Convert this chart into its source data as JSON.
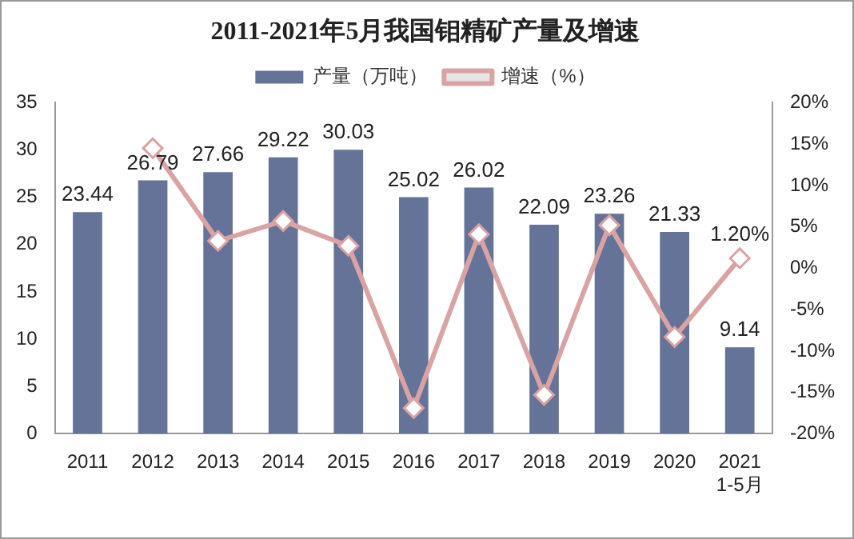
{
  "chart_data": {
    "type": "bar",
    "title": "2011-2021年5月我国钼精矿产量及增速",
    "categories": [
      "2011",
      "2012",
      "2013",
      "2014",
      "2015",
      "2016",
      "2017",
      "2018",
      "2019",
      "2020",
      "2021\n1-5月"
    ],
    "series": [
      {
        "name": "产量（万吨）",
        "color": "#667399",
        "values": [
          23.44,
          26.79,
          27.66,
          29.22,
          30.03,
          25.02,
          26.02,
          22.09,
          23.26,
          21.33,
          9.14
        ],
        "value_labels": [
          "23.44",
          "26.79",
          "27.66",
          "29.22",
          "30.03",
          "25.02",
          "26.02",
          "22.09",
          "23.26",
          "21.33",
          "9.14"
        ]
      },
      {
        "name": "增速（%）",
        "type": "line",
        "axis": "y2",
        "color": "#d9a3a3",
        "values": [
          null,
          14.5,
          3.3,
          5.7,
          2.7,
          -16.9,
          4.1,
          -15.3,
          5.2,
          -8.3,
          1.2
        ],
        "value_labels": [
          null,
          null,
          null,
          null,
          null,
          null,
          null,
          null,
          null,
          null,
          "1.20%"
        ]
      }
    ],
    "ylim": [
      0,
      35
    ],
    "yticks": [
      0,
      5,
      10,
      15,
      20,
      25,
      30,
      35
    ],
    "y2lim": [
      -20,
      20
    ],
    "y2ticks": [
      {
        "value": -20,
        "label": "-20%"
      },
      {
        "value": -15,
        "label": "-15%"
      },
      {
        "value": -10,
        "label": "-10%"
      },
      {
        "value": -5,
        "label": "-5%"
      },
      {
        "value": 0,
        "label": "0%"
      },
      {
        "value": 5,
        "label": "5%"
      },
      {
        "value": 10,
        "label": "10%"
      },
      {
        "value": 15,
        "label": "15%"
      },
      {
        "value": 20,
        "label": "20%"
      }
    ],
    "grid": false,
    "legend": "top",
    "marker": "diamond",
    "line_style": "solid"
  }
}
